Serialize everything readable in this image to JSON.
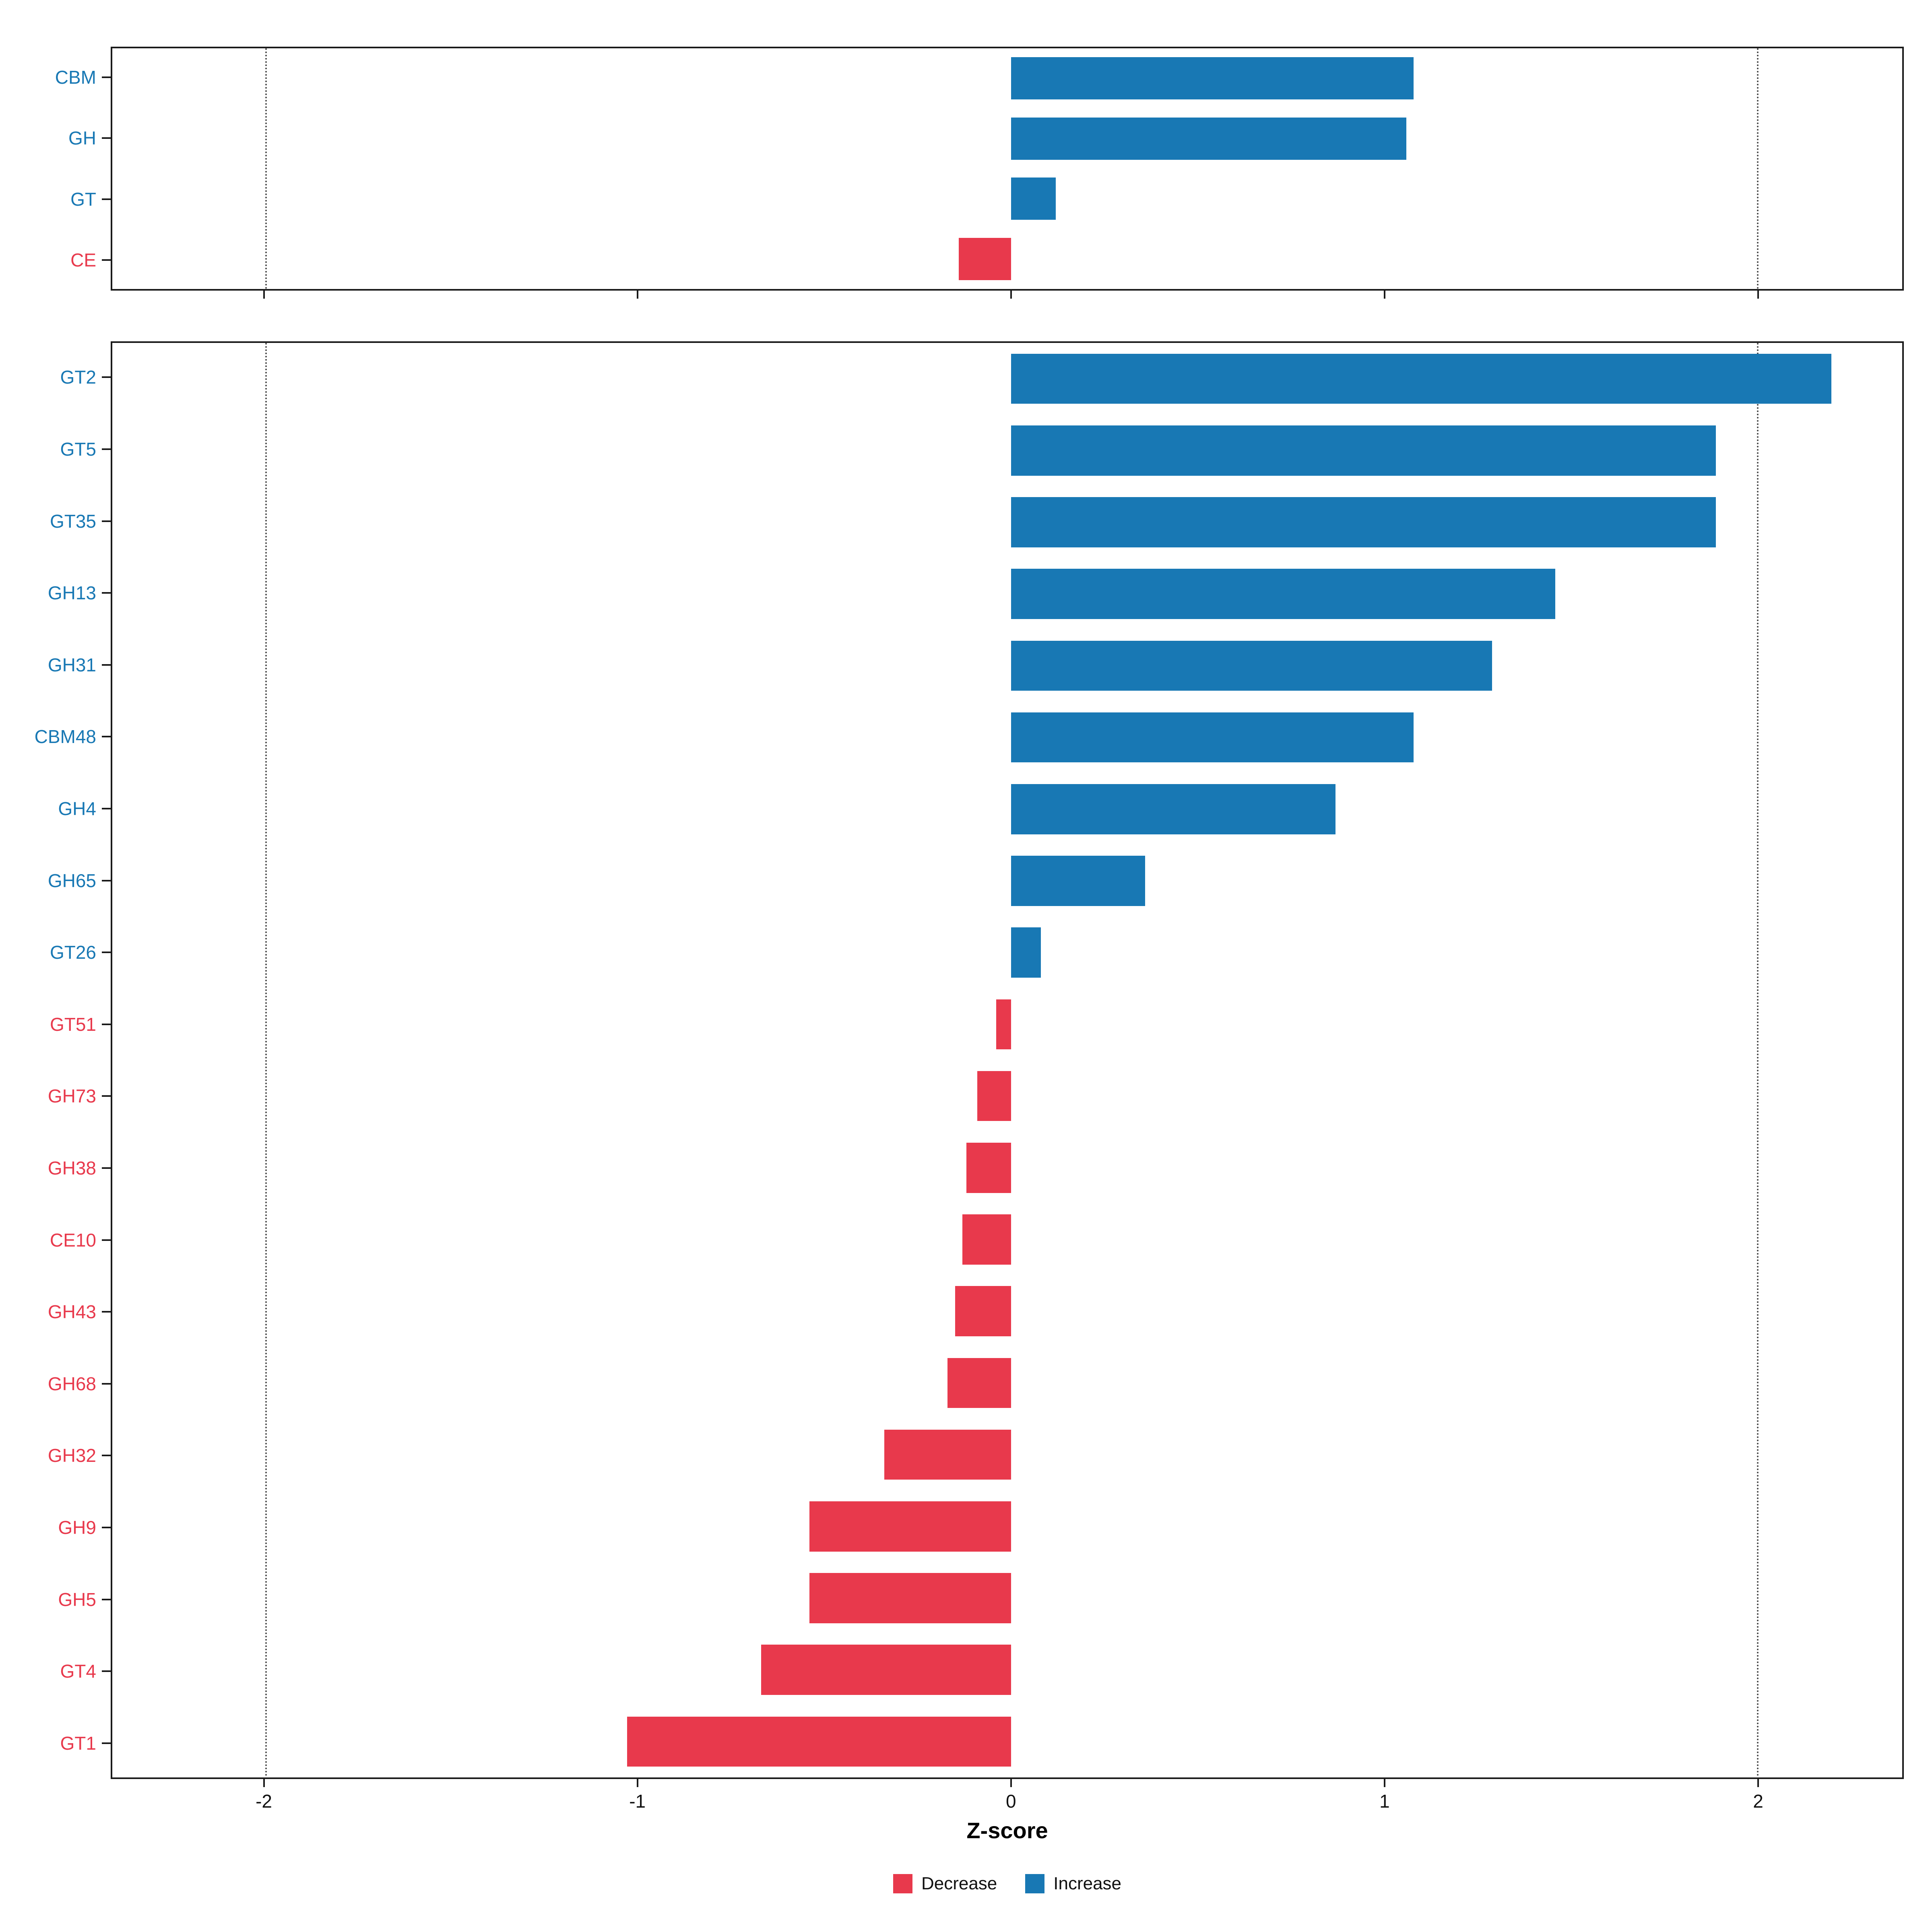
{
  "chart_data": {
    "type": "bar",
    "orientation": "horizontal",
    "title": "",
    "xlabel": "Z-score",
    "ylabel": "",
    "xlim": [
      -2.41,
      2.39
    ],
    "xticks": [
      -2,
      -1,
      0,
      1,
      2
    ],
    "grid_dotted_at": [
      -2,
      2
    ],
    "colors": {
      "increase": "#1878B4",
      "decrease": "#E8394C"
    },
    "legend": [
      {
        "label": "Decrease",
        "color": "decrease"
      },
      {
        "label": "Increase",
        "color": "increase"
      }
    ],
    "legend_position": "bottom",
    "panels": [
      {
        "name": "cazyme-class-panel",
        "categories": [
          "CBM",
          "GH",
          "GT",
          "CE"
        ],
        "values": [
          1.08,
          1.06,
          0.12,
          -0.14
        ]
      },
      {
        "name": "cazyme-family-panel",
        "categories": [
          "GT2",
          "GT5",
          "GT35",
          "GH13",
          "GH31",
          "CBM48",
          "GH4",
          "GH65",
          "GT26",
          "GT51",
          "GH73",
          "GH38",
          "CE10",
          "GH43",
          "GH68",
          "GH32",
          "GH9",
          "GH5",
          "GT4",
          "GT1"
        ],
        "values": [
          2.2,
          1.89,
          1.89,
          1.46,
          1.29,
          1.08,
          0.87,
          0.36,
          0.08,
          -0.04,
          -0.09,
          -0.12,
          -0.13,
          -0.15,
          -0.17,
          -0.34,
          -0.54,
          -0.54,
          -0.67,
          -1.03
        ]
      }
    ]
  }
}
